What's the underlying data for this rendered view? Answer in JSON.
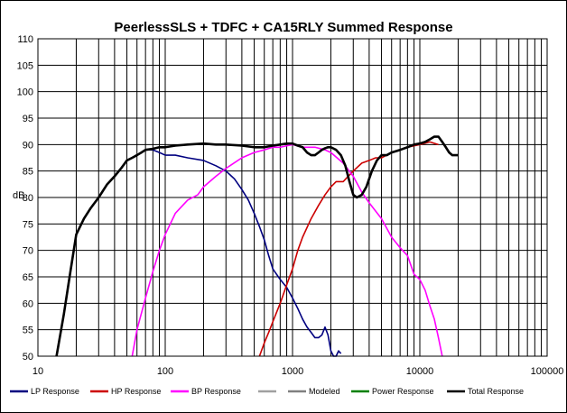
{
  "chart_data": {
    "type": "line",
    "title": "PeerlessSLS + TDFC + CA15RLY  Summed Response",
    "xlabel": "",
    "ylabel": "dB",
    "x_scale": "log",
    "xlim": [
      10,
      100000
    ],
    "ylim": [
      50,
      110
    ],
    "x_ticks": [
      "10",
      "100",
      "1000",
      "10000",
      "100000"
    ],
    "y_ticks": [
      "50",
      "55",
      "60",
      "65",
      "70",
      "75",
      "80",
      "85",
      "90",
      "95",
      "100",
      "105",
      "110"
    ],
    "grid": true,
    "legend_position": "bottom",
    "series": [
      {
        "name": "LP Response",
        "color": "#000080",
        "x": [
          14,
          16,
          18,
          20,
          23,
          26,
          30,
          35,
          40,
          45,
          50,
          55,
          60,
          65,
          70,
          80,
          90,
          100,
          120,
          150,
          200,
          250,
          300,
          350,
          400,
          450,
          500,
          550,
          600,
          650,
          700,
          800,
          900,
          1000,
          1100,
          1200,
          1300,
          1400,
          1500,
          1600,
          1700,
          1800,
          1900,
          2000,
          2100,
          2200,
          2300,
          2400
        ],
        "y": [
          50,
          58,
          66,
          73,
          76,
          78,
          80,
          82.5,
          84,
          85.5,
          87,
          87.5,
          88,
          88.5,
          89,
          89,
          88.5,
          88,
          88,
          87.5,
          87,
          86,
          85,
          83.5,
          81.5,
          79.5,
          77,
          74.5,
          72,
          69,
          66.5,
          64.5,
          63,
          61,
          59,
          57,
          55.5,
          54.5,
          53.5,
          53.5,
          54,
          55.5,
          54,
          51,
          50,
          50,
          51,
          50.5
        ]
      },
      {
        "name": "HP Response",
        "color": "#cc0000",
        "x": [
          550,
          600,
          650,
          700,
          800,
          900,
          1000,
          1100,
          1200,
          1400,
          1600,
          1800,
          2000,
          2200,
          2500,
          3000,
          3500,
          4000,
          4500,
          5000,
          6000,
          7000,
          8000,
          10000,
          12000,
          14000
        ],
        "y": [
          50,
          52.5,
          54.5,
          56.5,
          60,
          63.5,
          66.5,
          70,
          72.5,
          76,
          78.5,
          80.5,
          82,
          83,
          83,
          85,
          86.5,
          87,
          87.5,
          87.5,
          88.5,
          89,
          89.5,
          90,
          90.5,
          90
        ]
      },
      {
        "name": "BP Response",
        "color": "#ff00ff",
        "x": [
          55,
          60,
          70,
          80,
          90,
          100,
          120,
          150,
          180,
          200,
          250,
          300,
          400,
          500,
          600,
          700,
          800,
          1000,
          1200,
          1500,
          1800,
          2000,
          2500,
          3000,
          3500,
          4000,
          5000,
          6000,
          7000,
          8000,
          9000,
          10000,
          11000,
          12000,
          13000,
          14000,
          15000
        ],
        "y": [
          50,
          55,
          61,
          66,
          70,
          73,
          77,
          79.5,
          80.5,
          82,
          84,
          85.5,
          87.5,
          88.5,
          89,
          89.5,
          89.5,
          90,
          89.5,
          89.5,
          89,
          88.5,
          86.5,
          84,
          81,
          79,
          76,
          72.5,
          70.5,
          69,
          65.5,
          64.5,
          62.5,
          59.5,
          57,
          53.5,
          50
        ]
      },
      {
        "name": "",
        "color": "#a0a0a0",
        "x": [],
        "y": []
      },
      {
        "name": "Modeled",
        "color": "#808080",
        "x": [],
        "y": []
      },
      {
        "name": "Power Response",
        "color": "#008000",
        "x": [],
        "y": []
      },
      {
        "name": "Total Response",
        "color": "#000000",
        "x": [
          14,
          16,
          18,
          20,
          23,
          26,
          30,
          35,
          40,
          45,
          50,
          55,
          60,
          65,
          70,
          80,
          90,
          100,
          120,
          150,
          200,
          250,
          300,
          400,
          500,
          600,
          700,
          800,
          900,
          1000,
          1100,
          1200,
          1300,
          1400,
          1500,
          1600,
          1700,
          1800,
          1900,
          2000,
          2200,
          2400,
          2600,
          2800,
          3000,
          3200,
          3500,
          3800,
          4200,
          4600,
          5000,
          5500,
          6000,
          7000,
          8000,
          9000,
          10000,
          11000,
          12000,
          13000,
          14000,
          15000,
          16000,
          17000,
          18000,
          19000,
          20000
        ],
        "y": [
          50,
          58,
          66,
          73,
          76,
          78,
          80,
          82.5,
          84,
          85.5,
          87,
          87.5,
          88,
          88.5,
          89,
          89.2,
          89.5,
          89.5,
          89.8,
          90,
          90.2,
          90,
          90,
          89.8,
          89.5,
          89.5,
          89.8,
          90,
          90.2,
          90.2,
          89.8,
          89.5,
          88.5,
          88,
          88,
          88.5,
          89,
          89.3,
          89.5,
          89.5,
          89,
          88,
          86,
          83,
          80.5,
          80,
          80.5,
          82,
          85,
          87,
          88,
          88,
          88.5,
          89,
          89.5,
          90,
          90.2,
          90.5,
          91,
          91.5,
          91.5,
          90.5,
          89.5,
          88.5,
          88,
          88,
          88
        ]
      }
    ]
  }
}
